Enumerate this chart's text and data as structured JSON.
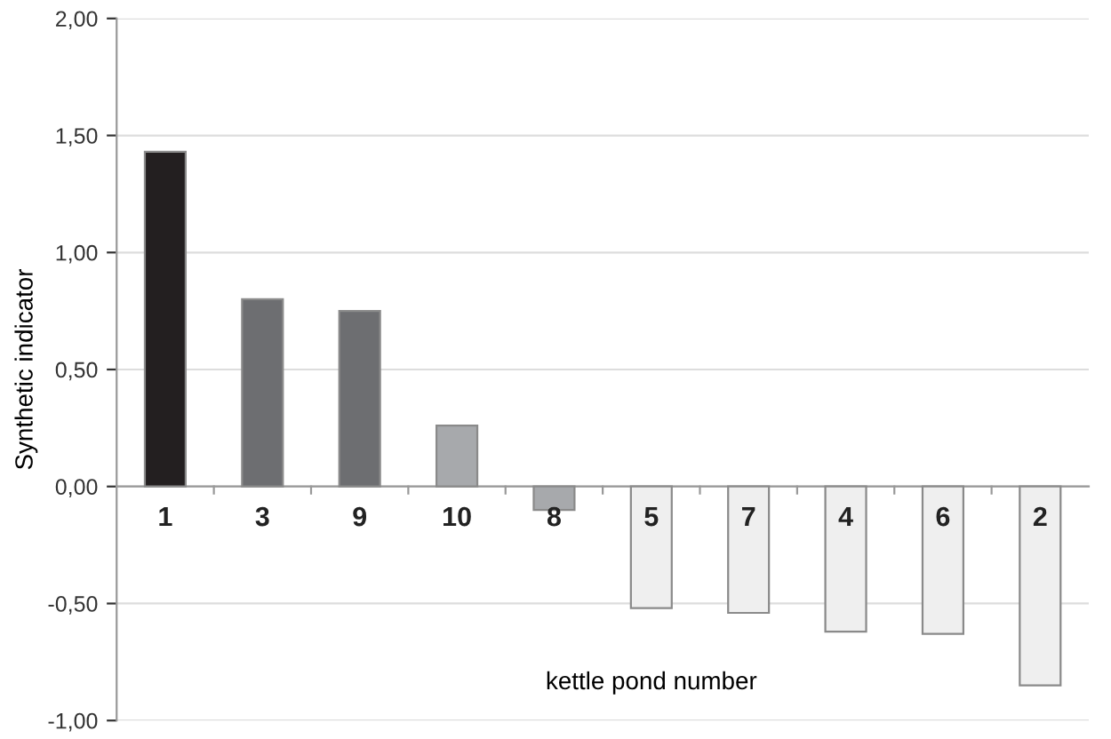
{
  "chart_data": {
    "type": "bar",
    "xlabel": "kettle pond number",
    "ylabel": "Synthetic indicator",
    "categories": [
      "1",
      "3",
      "9",
      "10",
      "8",
      "5",
      "7",
      "4",
      "6",
      "2"
    ],
    "values": [
      1.43,
      0.8,
      0.75,
      0.26,
      -0.1,
      -0.52,
      -0.54,
      -0.62,
      -0.63,
      -0.85
    ],
    "colors": [
      "#231f20",
      "#6d6e71",
      "#6d6e71",
      "#a7a9ac",
      "#a7a9ac",
      "#efefef",
      "#efefef",
      "#efefef",
      "#efefef",
      "#efefef"
    ],
    "ylim": [
      -1.0,
      2.0
    ],
    "yticks": [
      {
        "value": -1.0,
        "label": "-1,00"
      },
      {
        "value": -0.5,
        "label": "-0,50"
      },
      {
        "value": 0.0,
        "label": "0,00"
      },
      {
        "value": 0.5,
        "label": "0,50"
      },
      {
        "value": 1.0,
        "label": "1,00"
      },
      {
        "value": 1.5,
        "label": "1,50"
      },
      {
        "value": 2.0,
        "label": "2,00"
      }
    ],
    "grid": "y",
    "legend": false
  }
}
